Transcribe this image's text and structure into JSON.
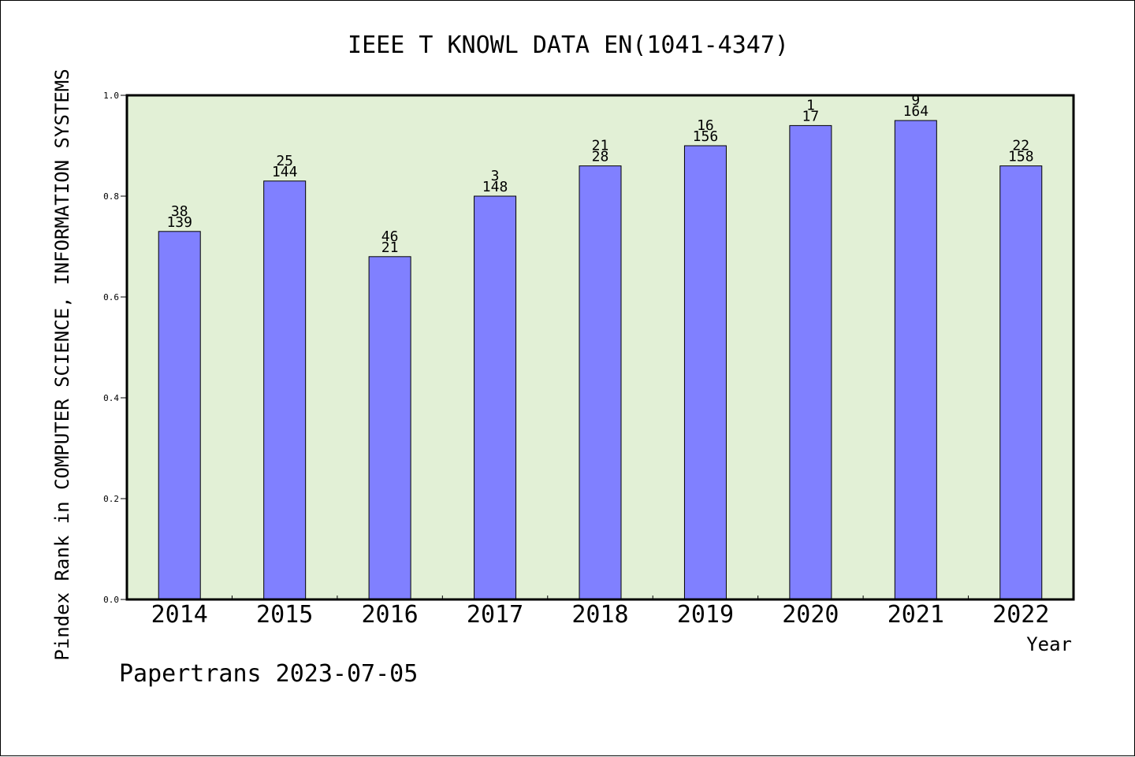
{
  "chart_data": {
    "type": "bar",
    "title": "IEEE T KNOWL DATA EN(1041-4347)",
    "xlabel": "Year",
    "ylabel": "Pindex Rank in COMPUTER SCIENCE, INFORMATION SYSTEMS",
    "footer": "Papertrans 2023-07-05",
    "categories": [
      "2014",
      "2015",
      "2016",
      "2017",
      "2018",
      "2019",
      "2020",
      "2021",
      "2022"
    ],
    "values": [
      0.73,
      0.83,
      0.68,
      0.8,
      0.86,
      0.9,
      0.94,
      0.95,
      0.86
    ],
    "label_top": [
      "38",
      "25",
      "46",
      "3",
      "21",
      "16",
      "1",
      "9",
      "22"
    ],
    "label_bottom": [
      "139",
      "144",
      "21",
      "148",
      "28",
      "156",
      "17",
      "164",
      "158"
    ],
    "ylim": [
      0.0,
      1.0
    ],
    "yticks": [
      "0.0",
      "0.2",
      "0.4",
      "0.6",
      "0.8",
      "1.0"
    ],
    "grid": false,
    "colors": {
      "bar": "#8080ff",
      "plot_background": "#e2f0d6",
      "axis": "#000000"
    }
  }
}
